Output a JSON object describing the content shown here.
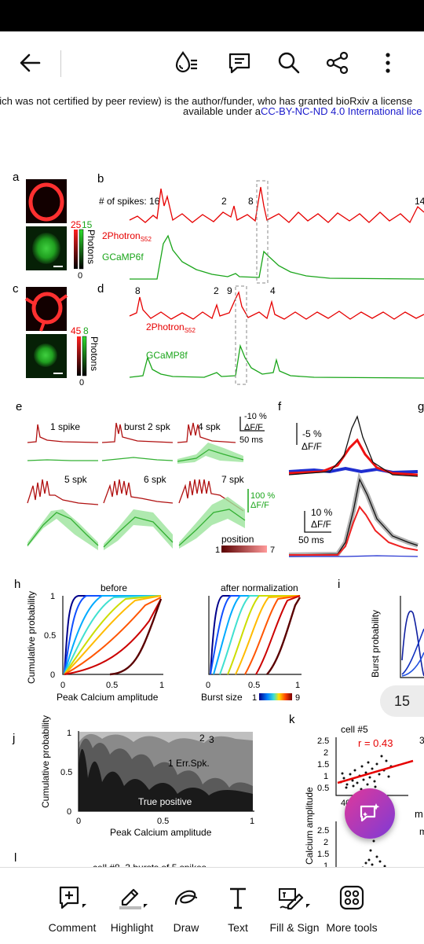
{
  "toolbar": {
    "back_icon": "arrow-left-icon",
    "icons": [
      "liquid-mode-icon",
      "comments-icon",
      "search-icon",
      "share-icon",
      "more-vertical-icon"
    ]
  },
  "notice": {
    "line1": "hich was not certified by peer review) is the author/funder, who has granted bioRxiv a license",
    "line2_prefix": "available under a",
    "line2_link": "CC-BY-NC-ND 4.0 International lice"
  },
  "figure": {
    "panel_labels": [
      "a",
      "b",
      "c",
      "d",
      "e",
      "f",
      "g",
      "h",
      "i",
      "j",
      "k",
      "l"
    ],
    "b": {
      "spikes_prefix": "# of spikes: 16",
      "spike_counts": [
        "2",
        "8",
        "14"
      ],
      "trace1": "2Photron",
      "trace1_sub": "S52",
      "trace2": "GCaMP6f"
    },
    "d": {
      "spike_counts": [
        "8",
        "2",
        "9",
        "4"
      ],
      "trace1": "2Photron",
      "trace1_sub": "S52",
      "trace2": "GCaMP8f"
    },
    "a": {
      "scale_max_red": "25",
      "scale_max_green": "15",
      "scale_min": "0",
      "scale_label": "Photons"
    },
    "c": {
      "scale_max_red": "45",
      "scale_max_green": "8",
      "scale_min": "0",
      "scale_label": "Photons"
    },
    "e": {
      "titles": [
        "1 spike",
        "burst 2 spk",
        "4 spk",
        "5 spk",
        "6 spk",
        "7 spk"
      ],
      "scale_pct": "-10 %",
      "scale_df": "ΔF/F",
      "scale_ms": "50 ms",
      "scale_green_pct": "100 %",
      "scale_green_df": "ΔF/F",
      "position_label": "position",
      "position_min": "1",
      "position_max": "7"
    },
    "f": {
      "scale_top_pct": "-5 %",
      "scale_top_df": "ΔF/F",
      "scale_bot_pct": "10 %",
      "scale_bot_df": "ΔF/F",
      "scale_ms": "50 ms"
    },
    "h": {
      "title_left": "before",
      "title_right": "after normalization",
      "ylabel": "Cumulative probability",
      "xlabel_left": "Peak Calcium amplitude",
      "xlabel_right": "Burst size",
      "ticks_x": [
        "0",
        "0.5",
        "1"
      ],
      "ticks_y": [
        "0",
        "0.5",
        "1"
      ],
      "colorbar_min": "1",
      "colorbar_max": "9"
    },
    "i": {
      "ylabel": "Burst probability"
    },
    "j": {
      "ylabel": "Cumulative probability",
      "xlabel": "Peak Calcium amplitude",
      "ticks_x": [
        "0",
        "0.5",
        "1"
      ],
      "ticks_y": [
        "0",
        "0.5",
        "1"
      ],
      "region_labels": [
        "True positive",
        "1 Err.Spk.",
        "2",
        "3"
      ]
    },
    "k": {
      "title": "cell #8, 3 bursts of 5 spikes"
    },
    "l": {
      "title": "cell #5",
      "r_value": "r = 0.43",
      "ylabel": "Calcium amplitude",
      "ticks_y": [
        "2.5",
        "2",
        "1.5",
        "1",
        "0.5"
      ],
      "ticks_y2": [
        "2.5",
        "2",
        "1.5",
        "1"
      ],
      "tick_x": "40",
      "cut_letters": [
        "m",
        "3",
        "m"
      ]
    }
  },
  "page_indicator": "15",
  "fab_icon": "ai-assistant-icon",
  "bottom_tools": [
    {
      "label": "Comment",
      "icon": "comment-add-icon"
    },
    {
      "label": "Highlight",
      "icon": "highlight-icon"
    },
    {
      "label": "Draw",
      "icon": "draw-icon"
    },
    {
      "label": "Text",
      "icon": "text-icon"
    },
    {
      "label": "Fill & Sign",
      "icon": "fill-sign-icon"
    },
    {
      "label": "More tools",
      "icon": "more-tools-icon"
    }
  ],
  "colors": {
    "accent_fab": "#c2389f",
    "trace_red": "#e60000",
    "trace_green": "#1aa51a",
    "link": "#1a1acc"
  }
}
